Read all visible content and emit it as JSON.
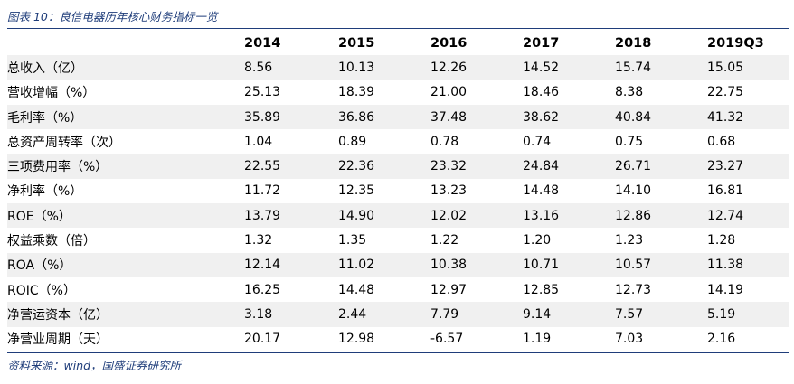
{
  "caption": "图表 10：良信电器历年核心财务指标一览",
  "source": "资料来源：wind，国盛证券研究所",
  "table": {
    "columns": [
      "2014",
      "2015",
      "2016",
      "2017",
      "2018",
      "2019Q3"
    ],
    "rows": [
      {
        "label": "总收入（亿）",
        "values": [
          "8.56",
          "10.13",
          "12.26",
          "14.52",
          "15.74",
          "15.05"
        ]
      },
      {
        "label": "营收增幅（%）",
        "values": [
          "25.13",
          "18.39",
          "21.00",
          "18.46",
          "8.38",
          "22.75"
        ]
      },
      {
        "label": "毛利率（%）",
        "values": [
          "35.89",
          "36.86",
          "37.48",
          "38.62",
          "40.84",
          "41.32"
        ]
      },
      {
        "label": "总资产周转率（次）",
        "values": [
          "1.04",
          "0.89",
          "0.78",
          "0.74",
          "0.75",
          "0.68"
        ]
      },
      {
        "label": "三项费用率（%）",
        "values": [
          "22.55",
          "22.36",
          "23.32",
          "24.84",
          "26.71",
          "23.27"
        ]
      },
      {
        "label": "净利率（%）",
        "values": [
          "11.72",
          "12.35",
          "13.23",
          "14.48",
          "14.10",
          "16.81"
        ]
      },
      {
        "label": "ROE（%）",
        "values": [
          "13.79",
          "14.90",
          "12.02",
          "13.16",
          "12.86",
          "12.74"
        ]
      },
      {
        "label": "权益乘数（倍）",
        "values": [
          "1.32",
          "1.35",
          "1.22",
          "1.20",
          "1.23",
          "1.28"
        ]
      },
      {
        "label": "ROA（%）",
        "values": [
          "12.14",
          "11.02",
          "10.38",
          "10.71",
          "10.57",
          "11.38"
        ]
      },
      {
        "label": "ROIC（%）",
        "values": [
          "16.25",
          "14.48",
          "12.97",
          "12.85",
          "12.73",
          "14.19"
        ]
      },
      {
        "label": "净营运资本（亿）",
        "values": [
          "3.18",
          "2.44",
          "7.79",
          "9.14",
          "7.57",
          "5.19"
        ]
      },
      {
        "label": "净营业周期（天）",
        "values": [
          "20.17",
          "12.98",
          "-6.57",
          "1.19",
          "7.03",
          "2.16"
        ]
      }
    ]
  },
  "colors": {
    "accent": "#1f3d7a",
    "row_shade": "#f0f0f0"
  }
}
